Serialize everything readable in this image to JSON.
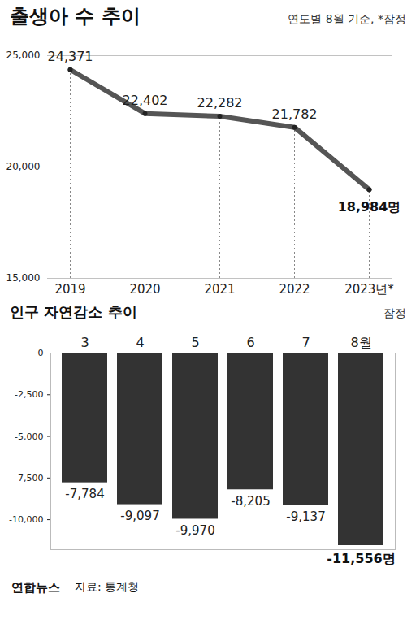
{
  "chart_data": [
    {
      "type": "line",
      "title": "출생아 수 추이",
      "subtitle": "연도별 8월 기준, *잠정",
      "categories": [
        "2019",
        "2020",
        "2021",
        "2022",
        "2023년*"
      ],
      "values": [
        24371,
        22402,
        22282,
        21782,
        18984
      ],
      "value_labels": [
        "24,371",
        "22,402",
        "22,282",
        "21,782",
        "18,984명"
      ],
      "color": "#555555",
      "marker": "circle",
      "ylim": [
        15000,
        25000
      ],
      "yticks": [
        {
          "value": 15000,
          "label": "15,000"
        },
        {
          "value": 20000,
          "label": "20,000"
        },
        {
          "value": 25000,
          "label": "25,000"
        }
      ],
      "grid": true,
      "data_labels": true
    },
    {
      "type": "bar",
      "title": "인구 자연감소 추이",
      "subtitle": "잠정",
      "categories": [
        "3",
        "4",
        "5",
        "6",
        "7",
        "8월"
      ],
      "values": [
        -7784,
        -9097,
        -9970,
        -8205,
        -9137,
        -11556
      ],
      "value_labels": [
        "-7,784",
        "-9,097",
        "-9,970",
        "-8,205",
        "-9,137",
        "-11,556명"
      ],
      "color": "#333333",
      "ylim": [
        -11800,
        0
      ],
      "yticks": [
        {
          "value": -10000,
          "label": "-10,000"
        },
        {
          "value": -7500,
          "label": "-7,500"
        },
        {
          "value": -5000,
          "label": "-5,000"
        },
        {
          "value": -2500,
          "label": "-2,500"
        },
        0
      ],
      "grid": false,
      "data_labels": true
    }
  ],
  "footer": {
    "logo": "연합뉴스",
    "source": "자료: 통계청"
  }
}
